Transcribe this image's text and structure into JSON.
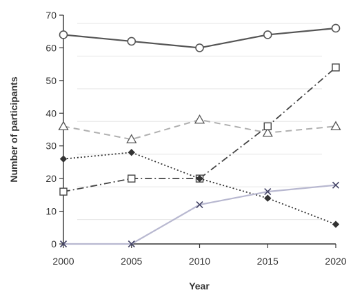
{
  "chart_data": {
    "type": "line",
    "title": "",
    "xlabel": "Year",
    "ylabel": "Number of participants",
    "x": [
      2000,
      2005,
      2010,
      2015,
      2020
    ],
    "xlim": [
      2000,
      2020
    ],
    "ylim": [
      0,
      70
    ],
    "y_ticks": [
      0,
      10,
      20,
      30,
      40,
      50,
      60,
      70
    ],
    "x_ticks": [
      2000,
      2005,
      2010,
      2015,
      2020
    ],
    "grid": false,
    "legend": "none",
    "series": [
      {
        "values": [
          64,
          62,
          60,
          64,
          66
        ],
        "color": "#555555",
        "line_style": "solid",
        "marker": "circle"
      },
      {
        "values": [
          36,
          32,
          38,
          34,
          36
        ],
        "color": "#b0b0b0",
        "line_style": "dashed",
        "marker": "triangle"
      },
      {
        "values": [
          16,
          20,
          20,
          36,
          54
        ],
        "color": "#444444",
        "line_style": "dash-dot",
        "marker": "square"
      },
      {
        "values": [
          26,
          28,
          20,
          14,
          6
        ],
        "color": "#333333",
        "line_style": "dotted",
        "marker": "diamond"
      },
      {
        "values": [
          0,
          0,
          12,
          16,
          18
        ],
        "color": "#b8b8d0",
        "line_style": "solid",
        "marker": "x"
      }
    ]
  }
}
